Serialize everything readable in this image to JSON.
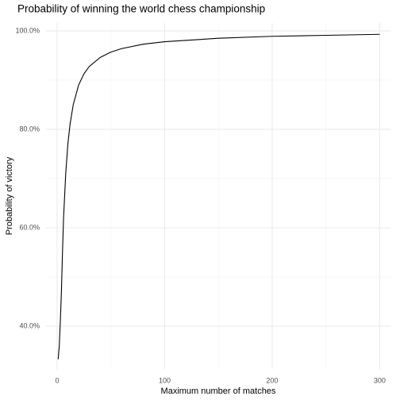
{
  "chart_data": {
    "type": "line",
    "title": "Probability of winning the world chess championship",
    "x_label": "Maximum number of matches",
    "y_label": "Probability of victory",
    "x": [
      1,
      2,
      3,
      4,
      5,
      6,
      8,
      10,
      12,
      15,
      20,
      25,
      30,
      40,
      50,
      60,
      80,
      100,
      150,
      200,
      250,
      300
    ],
    "series": [
      {
        "color": "#000000",
        "values": [
          33.3,
          36,
          41,
          47,
          55,
          62,
          71,
          77,
          81,
          85,
          89,
          91.3,
          92.8,
          94.6,
          95.7,
          96.4,
          97.3,
          97.8,
          98.5,
          98.9,
          99.1,
          99.3
        ]
      }
    ],
    "xlim": [
      -10.3,
      310
    ],
    "ylim": [
      31.3,
      101.6
    ],
    "xticks": [
      0,
      100,
      200,
      300
    ],
    "yticks": [
      {
        "value": 40,
        "label": "40.0%"
      },
      {
        "value": 60,
        "label": "60.0%"
      },
      {
        "value": 80,
        "label": "80.0%"
      },
      {
        "value": 100,
        "label": "100.0%"
      }
    ],
    "x_minor_ticks": [
      50,
      150,
      250
    ],
    "y_minor_ticks": [
      50,
      70,
      90
    ],
    "grid": true
  }
}
